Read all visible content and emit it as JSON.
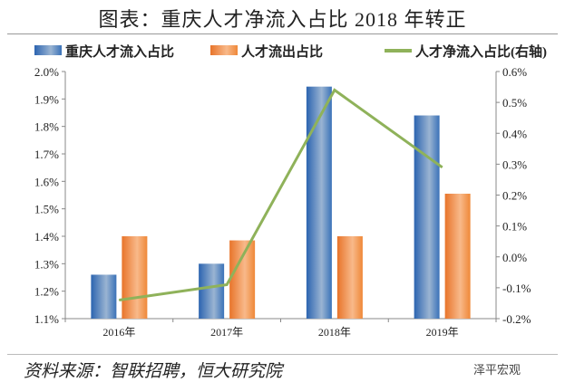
{
  "title": "图表：重庆人才净流入占比 2018 年转正",
  "source": "资料来源：智联招聘，恒大研究院",
  "watermark": "泽平宏观",
  "chart_data": {
    "type": "bar",
    "title": "图表：重庆人才净流入占比 2018 年转正",
    "categories": [
      "2016年",
      "2017年",
      "2018年",
      "2019年"
    ],
    "series": [
      {
        "name": "重庆人才流入占比",
        "type": "bar",
        "axis": "left",
        "color": "#3a72b8",
        "values": [
          1.26,
          1.3,
          1.945,
          1.84
        ]
      },
      {
        "name": "人才流出占比",
        "type": "bar",
        "axis": "left",
        "color": "#f08a3c",
        "values": [
          1.4,
          1.385,
          1.4,
          1.555
        ]
      },
      {
        "name": "人才净流入占比(右轴)",
        "type": "line",
        "axis": "right",
        "color": "#8fb25a",
        "values": [
          -0.14,
          -0.09,
          0.54,
          0.29
        ]
      }
    ],
    "left_axis": {
      "min": 1.1,
      "max": 2.0,
      "step": 0.1,
      "ticks": [
        "1.1%",
        "1.2%",
        "1.3%",
        "1.4%",
        "1.5%",
        "1.6%",
        "1.7%",
        "1.8%",
        "1.9%",
        "2.0%"
      ]
    },
    "right_axis": {
      "min": -0.2,
      "max": 0.6,
      "step": 0.1,
      "ticks": [
        "-0.2%",
        "-0.1%",
        "0.0%",
        "0.1%",
        "0.2%",
        "0.3%",
        "0.4%",
        "0.5%",
        "0.6%"
      ]
    },
    "legend_position": "top",
    "grid": false
  }
}
